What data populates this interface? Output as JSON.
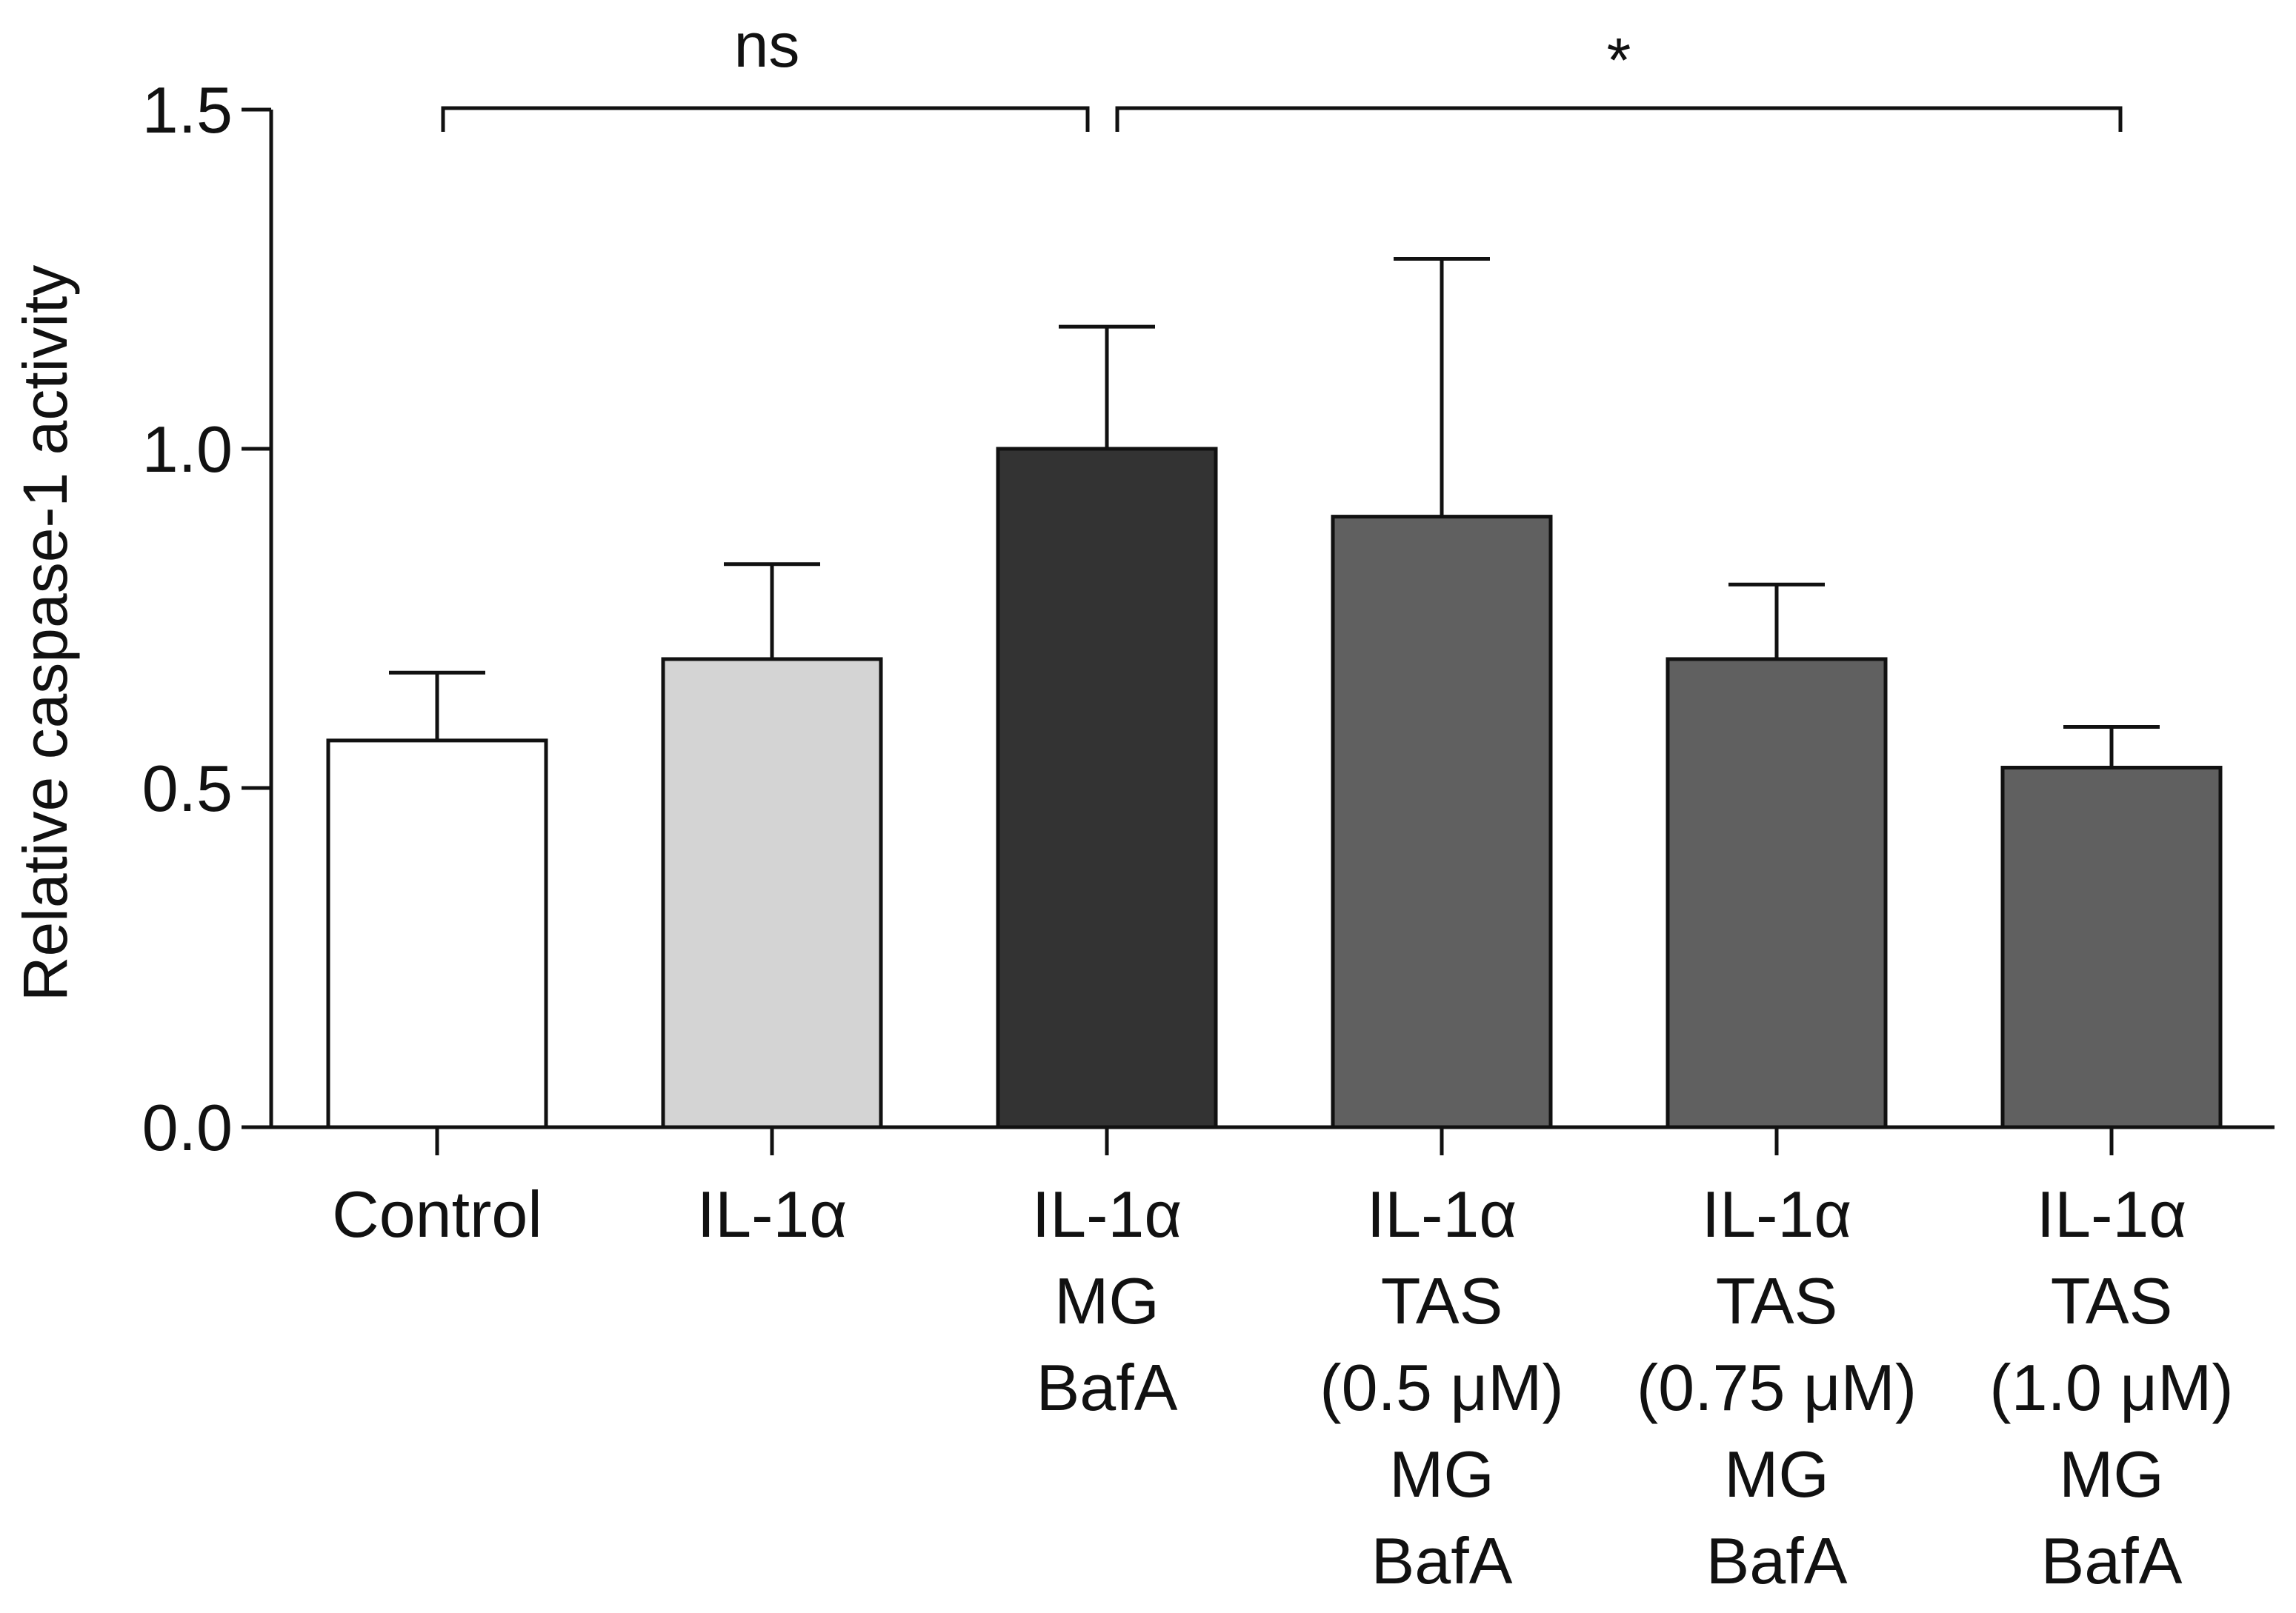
{
  "chart_data": {
    "type": "bar",
    "title": "",
    "xlabel": "",
    "ylabel": "Relative caspase-1 activity",
    "ylim": [
      0,
      1.5
    ],
    "yticks": [
      "0.0",
      "0.5",
      "1.0",
      "1.5"
    ],
    "ytick_values": [
      0,
      0.5,
      1.0,
      1.5
    ],
    "categories": [
      [
        "Control"
      ],
      [
        "IL-1α"
      ],
      [
        "IL-1α",
        "MG",
        "BafA"
      ],
      [
        "IL-1α",
        "TAS",
        "(0.5 μM)",
        "MG",
        "BafA"
      ],
      [
        "IL-1α",
        "TAS",
        "(0.75 μM)",
        "MG",
        "BafA"
      ],
      [
        "IL-1α",
        "TAS",
        "(1.0 μM)",
        "MG",
        "BafA"
      ]
    ],
    "values": [
      0.57,
      0.69,
      1.0,
      0.9,
      0.69,
      0.53
    ],
    "error_upper": [
      0.67,
      0.83,
      1.18,
      1.28,
      0.8,
      0.59
    ],
    "bar_colors": [
      "#ffffff",
      "#d4d4d4",
      "#333333",
      "#606060",
      "#606060",
      "#606060"
    ],
    "significance": [
      {
        "from": 0,
        "to": 2,
        "label": "ns"
      },
      {
        "from": 2,
        "to": 5,
        "label": "*"
      }
    ],
    "grid": false,
    "legend": "none"
  }
}
